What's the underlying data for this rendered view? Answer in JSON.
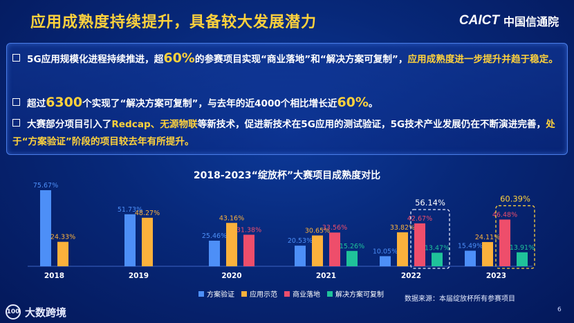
{
  "header": {
    "title": "应用成熟度持续提升，具备较大发展潜力",
    "logo_mark": "CAICT",
    "logo_cn": "中国信通院"
  },
  "bullets": {
    "b1": {
      "p1": "5G应用规模化进程持续推进，超",
      "p2": "60%",
      "p3": "的参赛项目实现“商业落地”和“解决方案可复制”，",
      "p4": "应用成熟度进一步提升并趋于稳定。"
    },
    "b2": {
      "p1": "超过",
      "p2": "6300",
      "p3": "个实现了“解决方案可复制”，与去年的近4000个相比增长近",
      "p4": "60%",
      "p5": "。"
    },
    "b3": {
      "p1": "大赛部分项目引入了",
      "p2": "Redcap、无源物联",
      "p3": "等新技术，促进新技术在5G应用的测试验证，5G技术产业发展仍在不断演进完善，",
      "p4": "处于“方案验证”阶段的项目较去年有所提升。"
    }
  },
  "chart_data": {
    "type": "bar",
    "title": "2018-2023“绽放杯”大赛项目成熟度对比",
    "categories": [
      "2018",
      "2019",
      "2020",
      "2021",
      "2022",
      "2023"
    ],
    "series": [
      {
        "name": "方案验证",
        "color": "#4d8ff7",
        "values": [
          75.67,
          51.73,
          25.46,
          20.53,
          10.05,
          15.49
        ]
      },
      {
        "name": "应用示范",
        "color": "#fbb13c",
        "values": [
          24.33,
          48.27,
          43.16,
          30.65,
          33.82,
          24.11
        ]
      },
      {
        "name": "商业落地",
        "color": "#ee4e6b",
        "values": [
          null,
          null,
          31.38,
          33.56,
          42.67,
          46.48
        ]
      },
      {
        "name": "解决方案可复制",
        "color": "#1fc29a",
        "values": [
          null,
          null,
          null,
          15.26,
          13.47,
          13.91
        ]
      }
    ],
    "labels": [
      [
        "75.67%",
        "51.73%",
        "25.46%",
        "20.53%",
        "10.05%",
        "15.49%"
      ],
      [
        "24.33%",
        "48.27%",
        "43.16%",
        "30.65%",
        "33.82%",
        "24.11%"
      ],
      [
        null,
        null,
        "31.38%",
        "33.56%",
        "42.67%",
        "46.48%"
      ],
      [
        null,
        null,
        null,
        "15.26%",
        "13.47%",
        "13.91%"
      ]
    ],
    "highlight_totals": [
      {
        "category": "2022",
        "label": "56.14%"
      },
      {
        "category": "2023",
        "label": "60.39%"
      }
    ],
    "ylim": [
      0,
      80
    ],
    "grid": false,
    "legend_position": "bottom"
  },
  "footer": {
    "source": "数据来源：本届绽放杯所有参赛项目",
    "page_number": "6",
    "brand_circle": "100",
    "brand": "大数跨境"
  },
  "watermark": "CAICT 中国信通院"
}
